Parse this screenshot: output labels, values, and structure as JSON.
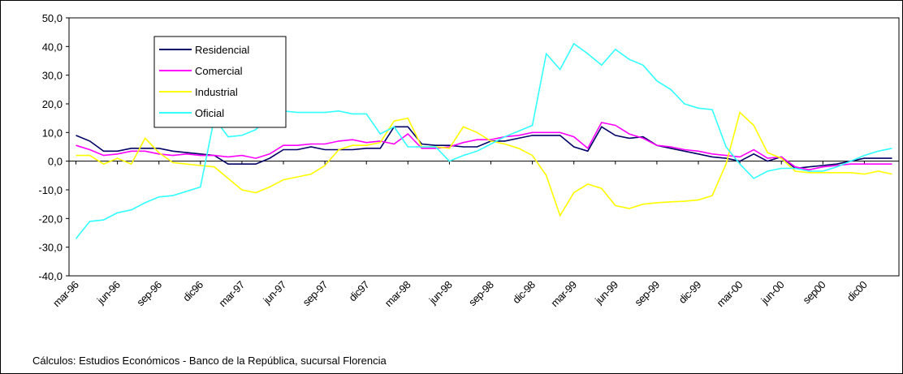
{
  "chart_data": {
    "type": "line",
    "categories": [
      "mar-96",
      null,
      null,
      "jun-96",
      null,
      null,
      "sep-96",
      null,
      null,
      "dic96",
      null,
      null,
      "mar-97",
      null,
      null,
      "jun-97",
      null,
      null,
      "sep-97",
      null,
      null,
      "dic97",
      null,
      null,
      "mar-98",
      null,
      null,
      "jun-98",
      null,
      null,
      "sep-98",
      null,
      null,
      "dic-98",
      null,
      null,
      "mar-99",
      null,
      null,
      "jun-99",
      null,
      null,
      "sep-99",
      null,
      null,
      "dic-99",
      null,
      null,
      "mar-00",
      null,
      null,
      "jun-00",
      null,
      null,
      "sep00",
      null,
      null,
      "dic00",
      null,
      null
    ],
    "series": [
      {
        "name": "Residencial",
        "color": "#000066",
        "values": [
          9,
          7,
          3.5,
          3.5,
          4.5,
          4.5,
          4.5,
          3.5,
          3,
          2.5,
          2,
          -1,
          -1,
          -1,
          1,
          4,
          4,
          5,
          4,
          4,
          4,
          4.5,
          4.5,
          12,
          12,
          6,
          5.5,
          5.5,
          5,
          5,
          7,
          7,
          8,
          9,
          9,
          9,
          5,
          3.5,
          12,
          9,
          8,
          8.5,
          5.5,
          4.5,
          3.5,
          2.5,
          1.5,
          1,
          0,
          2.5,
          0,
          1.5,
          -2.5,
          -2,
          -1.5,
          -1,
          0,
          1,
          1,
          1
        ]
      },
      {
        "name": "Comercial",
        "color": "#ff00ff",
        "values": [
          5.5,
          4,
          2,
          2.5,
          3.5,
          3.5,
          2.5,
          2,
          2.5,
          2,
          2,
          1.5,
          2,
          1,
          2.5,
          5.5,
          5.5,
          6,
          6,
          7,
          7.5,
          6.5,
          7,
          6,
          9.5,
          4.5,
          4.5,
          5,
          6.5,
          7.5,
          7.5,
          8.5,
          9,
          10,
          10,
          10,
          8.5,
          4.5,
          13.5,
          12.5,
          9.5,
          8,
          5.5,
          5,
          4,
          3.5,
          2.5,
          2,
          1.5,
          4,
          1,
          1.5,
          -2,
          -3,
          -2,
          -1.5,
          -1,
          -1,
          -1,
          -1
        ]
      },
      {
        "name": "Industrial",
        "color": "#ffff00",
        "values": [
          2,
          2,
          -1,
          1,
          -1,
          8,
          3,
          -0.5,
          -1,
          -1.5,
          -2,
          -6,
          -10,
          -11,
          -9,
          -6.5,
          -5.5,
          -4.5,
          -1.5,
          4,
          5.5,
          5.5,
          6.5,
          14,
          15,
          5,
          5,
          4.5,
          12,
          10,
          7,
          6,
          4.5,
          2,
          -5,
          -19,
          -11,
          -8,
          -9.5,
          -15.5,
          -16.5,
          -15,
          -14.5,
          -14.2,
          -14,
          -13.5,
          -12,
          -1,
          17,
          12.5,
          3,
          1,
          -3.5,
          -4,
          -4,
          -4,
          -4,
          -4.5,
          -3.5,
          -4.5
        ]
      },
      {
        "name": "Oficial",
        "color": "#33ffff",
        "values": [
          -27,
          -21,
          -20.5,
          -18,
          -17,
          -14.5,
          -12.5,
          -12,
          -10.5,
          -9,
          15,
          8.5,
          9,
          11,
          16,
          17.5,
          17,
          17,
          17,
          17.5,
          16.5,
          16.5,
          9.5,
          12,
          5,
          5,
          5,
          0,
          2,
          3.5,
          6,
          8.5,
          10.5,
          12.5,
          37.5,
          32,
          41,
          37.5,
          33.5,
          39,
          35.5,
          33.5,
          28,
          25,
          20,
          18.5,
          18,
          5,
          -1,
          -6,
          -3.5,
          -2.5,
          -2.5,
          -3.5,
          -3.5,
          -2,
          0,
          2,
          3.5,
          4.5
        ]
      }
    ],
    "ylim": [
      -40,
      50
    ],
    "yticks": [
      {
        "value": -40,
        "label": "-40,0"
      },
      {
        "value": -30,
        "label": "-30,0"
      },
      {
        "value": -20,
        "label": "-20,0"
      },
      {
        "value": -10,
        "label": "-10,0"
      },
      {
        "value": 0,
        "label": "0,0"
      },
      {
        "value": 10,
        "label": "10,0"
      },
      {
        "value": 20,
        "label": "20,0"
      },
      {
        "value": 30,
        "label": "30,0"
      },
      {
        "value": 40,
        "label": "40,0"
      },
      {
        "value": 50,
        "label": "50,0"
      }
    ],
    "footnote": "Cálculos:  Estudios Económicos - Banco de la República, sucursal Florencia"
  }
}
